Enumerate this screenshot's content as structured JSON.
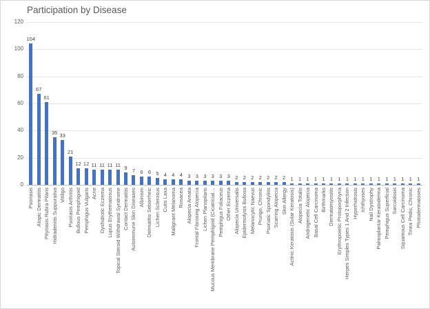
{
  "window": {
    "background": "#ffffff",
    "border_color": "#d6d6d6"
  },
  "chart_data": {
    "type": "bar",
    "title": "Participation by Disease",
    "xlabel": "",
    "ylabel": "",
    "ylim": [
      0,
      120
    ],
    "ytick_interval": 20,
    "grid": true,
    "legend": "none",
    "bar_color": "#4472c4",
    "gridline_color": "#e4e4e4",
    "axis_line_color": "#bfbfbf",
    "tick_label_color": "#595959",
    "data_label_color": "#404040",
    "title_color": "#595959",
    "data_labels_shown": true,
    "categories": [
      "Psoriasis",
      "Atopic Dermatitis",
      "Pityriasis Rubra Pilaris",
      "Hidradenitis Suppurativa",
      "Vitiligo",
      "Psoriasis Arthritis",
      "Bullous Pemphigoid",
      "Pemphigus Vulgaris",
      "Acne",
      "Dyshidrotic Eczema",
      "Lupus Erythematosus",
      "Topical Steroid Withdrawal Syndrome",
      "Contact Dermatitis",
      "Autoimmune Skin Diseases",
      "Albinism",
      "Dermatitis Seborrheic",
      "Lichen Sclerosus",
      "Cutis Laxa",
      "Malignant Melanoma",
      "Rosacea",
      "Alopecia Areata",
      "Frontal Fibrosing Alopecia",
      "Lichen Planopilaris",
      "Mucous Membrane Pemphigoid (Cicatricial…",
      "Pemphigus Foliaceus",
      "Other Eczema",
      "Alopecia Universalis",
      "Epidermolysis Bullosa",
      "Melanocytic Naevus",
      "Prurigo, Chronic",
      "Psoriatic Spondylitis",
      "Scarring Alopecia",
      "Skin Allergy",
      "Actinic Keratosis (Solar Keratosis)",
      "Alopecia Totalis",
      "Androgenetic Alopecia",
      "Basal Cell Carcinoma",
      "Birthmarks",
      "Dermatomyositis",
      "Erythropoietic Protoporphyria",
      "Herpes Simplex Types 1 And 2 Infection",
      "Hyperhidrosis",
      "Ichthyoses",
      "Nail Dystrophy",
      "Palmoplantar Keratoderma",
      "Pemphigus Superficial",
      "Sarcoidosis",
      "Squamous Cell Carcinoma",
      "Tinea Pedis, Chronic",
      "Photodermatoses"
    ],
    "values": [
      104,
      67,
      61,
      35,
      33,
      21,
      12,
      12,
      11,
      11,
      11,
      11,
      9,
      7,
      6,
      6,
      5,
      4,
      4,
      4,
      3,
      3,
      3,
      3,
      3,
      3,
      2,
      2,
      2,
      2,
      2,
      2,
      2,
      1,
      1,
      1,
      1,
      1,
      1,
      1,
      1,
      1,
      1,
      1,
      1,
      1,
      1,
      1,
      1,
      1
    ]
  }
}
